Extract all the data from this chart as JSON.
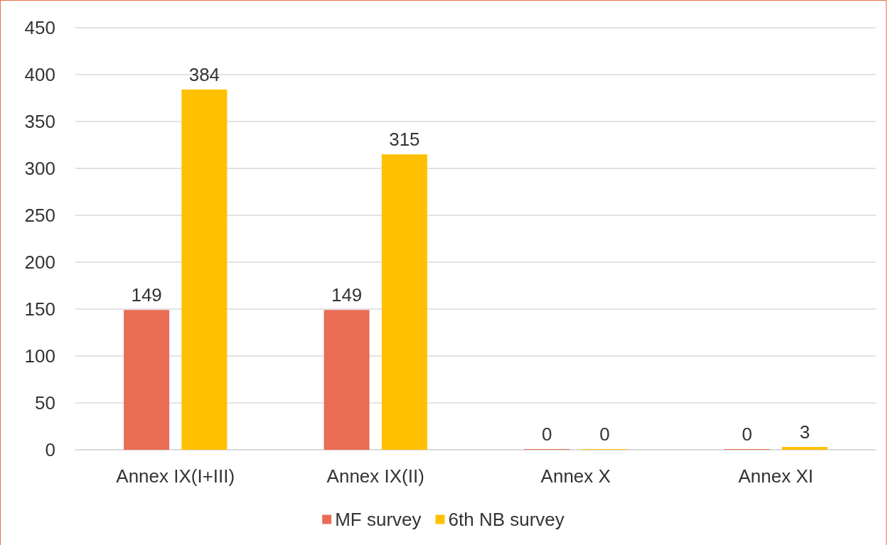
{
  "chart_data": {
    "type": "bar",
    "categories": [
      "Annex IX(I+III)",
      "Annex IX(II)",
      "Annex X",
      "Annex XI"
    ],
    "series": [
      {
        "name": "MF survey",
        "color": "#e96c55",
        "values": [
          149,
          149,
          0,
          0
        ]
      },
      {
        "name": "6th NB survey",
        "color": "#ffc000",
        "values": [
          384,
          315,
          0,
          3
        ]
      }
    ],
    "ylim": [
      0,
      450
    ],
    "yticks": [
      0,
      50,
      100,
      150,
      200,
      250,
      300,
      350,
      400,
      450
    ],
    "grid": "y",
    "legend": "bottom",
    "data_labels": true
  }
}
